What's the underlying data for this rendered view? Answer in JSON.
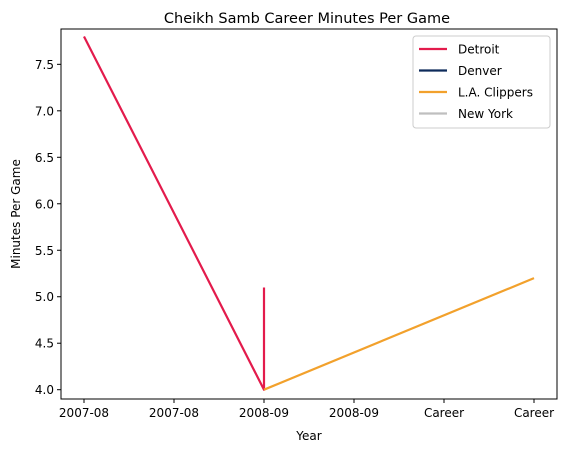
{
  "chart_data": {
    "type": "line",
    "title": "Cheikh Samb Career Minutes Per Game",
    "xlabel": "Year",
    "ylabel": "Minutes Per Game",
    "x_tick_labels": [
      "2007-08",
      "2007-08",
      "2008-09",
      "2008-09",
      "Career",
      "Career"
    ],
    "ylim": [
      3.9,
      7.88
    ],
    "y_ticks": [
      4.0,
      4.5,
      5.0,
      5.5,
      6.0,
      6.5,
      7.0,
      7.5
    ],
    "y_tick_labels": [
      "4.0",
      "4.5",
      "5.0",
      "5.5",
      "6.0",
      "6.5",
      "7.0",
      "7.5"
    ],
    "grid": false,
    "legend_position": "top-right",
    "series": [
      {
        "name": "Detroit",
        "color": "#E31B4C",
        "points": [
          [
            0,
            7.8
          ],
          [
            2,
            4.0
          ],
          [
            2,
            5.1
          ]
        ]
      },
      {
        "name": "Denver",
        "color": "#0D2B5B",
        "points": []
      },
      {
        "name": "L.A. Clippers",
        "color": "#F2A12C",
        "points": [
          [
            2,
            4.0
          ],
          [
            5,
            5.2
          ]
        ]
      },
      {
        "name": "New York",
        "color": "#BFBFBF",
        "points": []
      }
    ]
  }
}
